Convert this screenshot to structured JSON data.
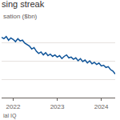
{
  "chart_data": {
    "type": "line",
    "title": "sing streak",
    "subtitle": "sation ($bn)",
    "annotations": [
      "ial IQ"
    ],
    "categories": [
      null,
      null,
      null,
      null,
      null,
      "2022",
      null,
      null,
      null,
      null,
      null,
      null,
      null,
      null,
      null,
      null,
      null,
      null,
      null,
      null,
      null,
      null,
      null,
      null,
      "2023",
      null,
      null,
      null,
      null,
      null,
      null,
      null,
      null,
      null,
      null,
      null,
      null,
      null,
      null,
      null,
      null,
      null,
      null,
      "2024",
      null,
      null,
      null,
      null,
      null,
      null
    ],
    "values": [
      82,
      80,
      83,
      78,
      81,
      79,
      76,
      80,
      77,
      78,
      74,
      72,
      70,
      66,
      68,
      63,
      60,
      62,
      58,
      61,
      57,
      59,
      56,
      58,
      55,
      57,
      53,
      56,
      58,
      54,
      55,
      52,
      54,
      50,
      53,
      49,
      51,
      47,
      50,
      46,
      48,
      45,
      47,
      43,
      44,
      41,
      42,
      38,
      36,
      32
    ],
    "color": "#0f5499",
    "ylim": [
      0,
      100
    ],
    "yticks": [
      0,
      25,
      50,
      75,
      100
    ],
    "grid": true,
    "tick_labels": "x"
  }
}
